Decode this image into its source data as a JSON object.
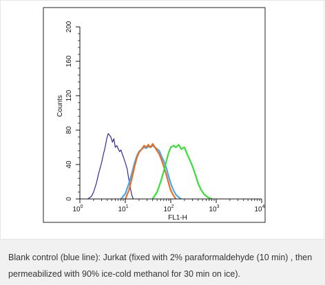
{
  "chart_data": {
    "type": "line",
    "xlabel": "FL1-H",
    "ylabel": "Counts",
    "x_scale": "log",
    "xlim": [
      1,
      10000
    ],
    "ylim": [
      0,
      200
    ],
    "x_ticks": [
      {
        "value": 1,
        "base": "10",
        "exp": "0"
      },
      {
        "value": 10,
        "base": "10",
        "exp": "1"
      },
      {
        "value": 100,
        "base": "10",
        "exp": "2"
      },
      {
        "value": 1000,
        "base": "10",
        "exp": "3"
      },
      {
        "value": 10000,
        "base": "10",
        "exp": "4"
      }
    ],
    "y_ticks": [
      "0",
      "40",
      "80",
      "120",
      "160",
      "200"
    ],
    "grid": false,
    "legend": "none",
    "series": [
      {
        "color": "#2a2aa0",
        "x": [
          1.5,
          1.8,
          2.0,
          2.3,
          2.6,
          3.0,
          3.3,
          3.6,
          3.9,
          4.2,
          4.5,
          4.8,
          5.2,
          5.6,
          6.0,
          6.5,
          7.0,
          7.5,
          8.0,
          8.6,
          9.2,
          10,
          11,
          12,
          13,
          14,
          15
        ],
        "y": [
          0,
          3,
          8,
          18,
          30,
          42,
          52,
          60,
          70,
          76,
          74,
          72,
          66,
          70,
          60,
          62,
          58,
          55,
          57,
          52,
          48,
          42,
          35,
          22,
          12,
          4,
          0
        ]
      },
      {
        "color": "#3fa9f5",
        "x": [
          8,
          10,
          12,
          14,
          16,
          18,
          20,
          23,
          26,
          29,
          32,
          36,
          40,
          45,
          50,
          56,
          62,
          70,
          80,
          90,
          100,
          115,
          130,
          150,
          170
        ],
        "y": [
          0,
          6,
          18,
          30,
          42,
          50,
          55,
          58,
          60,
          59,
          61,
          60,
          62,
          60,
          58,
          56,
          50,
          44,
          36,
          26,
          18,
          10,
          5,
          2,
          0
        ]
      },
      {
        "color": "#f06a1d",
        "x": [
          10,
          12,
          14,
          16,
          18,
          20,
          23,
          26,
          29,
          32,
          36,
          40,
          45,
          50,
          56,
          62,
          70,
          80,
          90,
          100,
          115,
          130
        ],
        "y": [
          0,
          10,
          24,
          38,
          48,
          54,
          58,
          62,
          60,
          63,
          60,
          64,
          60,
          56,
          52,
          46,
          38,
          28,
          18,
          10,
          4,
          0
        ]
      },
      {
        "color": "#33e033",
        "x": [
          40,
          50,
          60,
          70,
          80,
          90,
          100,
          115,
          130,
          150,
          170,
          200,
          230,
          260,
          300,
          350,
          400,
          470,
          550,
          650,
          800
        ],
        "y": [
          0,
          8,
          20,
          32,
          44,
          54,
          60,
          62,
          60,
          63,
          58,
          60,
          52,
          46,
          38,
          28,
          18,
          10,
          5,
          2,
          0
        ]
      }
    ]
  },
  "caption": "Blank control (blue line): Jurkat (fixed with 2% paraformaldehyde (10 min) , then permeabilized with 90% ice-cold methanol for 30 min on ice)."
}
